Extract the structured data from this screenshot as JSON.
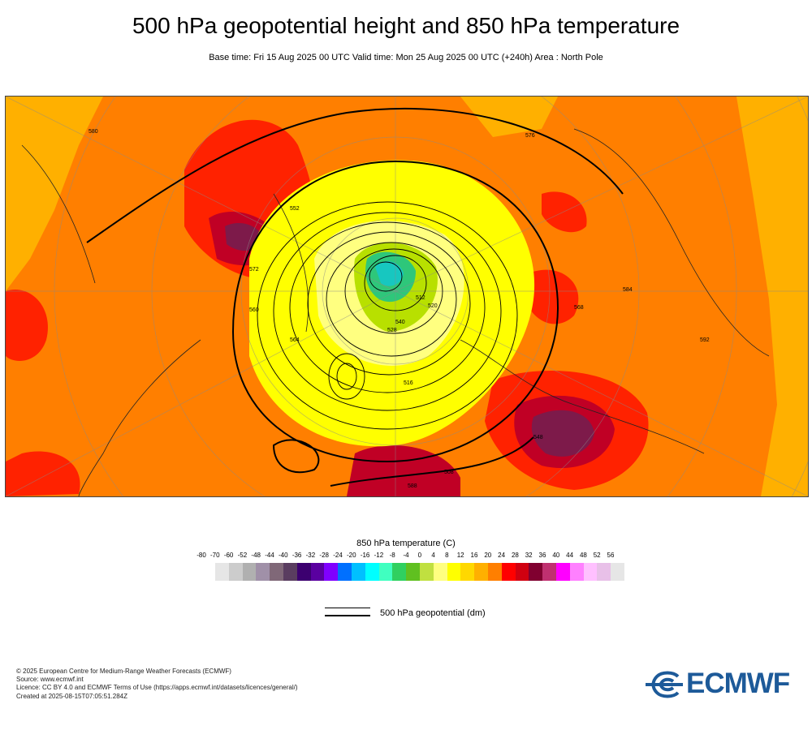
{
  "header": {
    "title": "500 hPa geopotential height and 850 hPa temperature",
    "subtitle": "Base time: Fri 15 Aug 2025 00 UTC Valid time: Mon 25 Aug 2025 00 UTC (+240h) Area : North Pole"
  },
  "map": {
    "projection": "polar-stereographic",
    "colors": {
      "ocean_warm": "#ff7f00",
      "hot": "#ff2200",
      "very_hot": "#c00025",
      "extreme": "#7d1a4a",
      "mild": "#ffb000",
      "cool": "#ffff00",
      "cold": "#b8e000",
      "very_cold": "#2ec77a",
      "polar": "#17c7c0"
    },
    "contour_labels": [
      "552",
      "560",
      "576",
      "584",
      "540",
      "528",
      "520",
      "512",
      "508",
      "548",
      "564",
      "568",
      "572",
      "580",
      "588",
      "592",
      "516"
    ]
  },
  "legend": {
    "temperature_title": "850 hPa temperature (C)",
    "ticks": [
      "-80",
      "-70",
      "-60",
      "-52",
      "-48",
      "-44",
      "-40",
      "-36",
      "-32",
      "-28",
      "-24",
      "-20",
      "-16",
      "-12",
      "-8",
      "-4",
      "0",
      "4",
      "8",
      "12",
      "16",
      "20",
      "24",
      "28",
      "32",
      "36",
      "40",
      "44",
      "48",
      "52",
      "56"
    ],
    "swatches": [
      "#e6e6e6",
      "#cccccc",
      "#b0b0b0",
      "#a090a8",
      "#806878",
      "#5a3d60",
      "#3c0070",
      "#5a00a0",
      "#8000ff",
      "#0070ff",
      "#00c0ff",
      "#00ffff",
      "#40ffc0",
      "#30d060",
      "#60c020",
      "#c0e040",
      "#ffff80",
      "#ffff00",
      "#ffd800",
      "#ffb000",
      "#ff7f00",
      "#ff0000",
      "#d00010",
      "#800030",
      "#c03070",
      "#ff00ff",
      "#ff80ff",
      "#ffc0ff",
      "#e8c0e8",
      "#e6e6e6"
    ],
    "contour_label": "500 hPa geopotential (dm)"
  },
  "footer": {
    "copyright": "© 2025 European Centre for Medium-Range Weather Forecasts (ECMWF)",
    "source": "Source: www.ecmwf.int",
    "licence": "Licence: CC BY 4.0 and ECMWF Terms of Use (https://apps.ecmwf.int/datasets/licences/general/)",
    "created": "Created at 2025-08-15T07:05:51.284Z"
  },
  "logo": {
    "text": "ECMWF",
    "color": "#1d5a99"
  }
}
